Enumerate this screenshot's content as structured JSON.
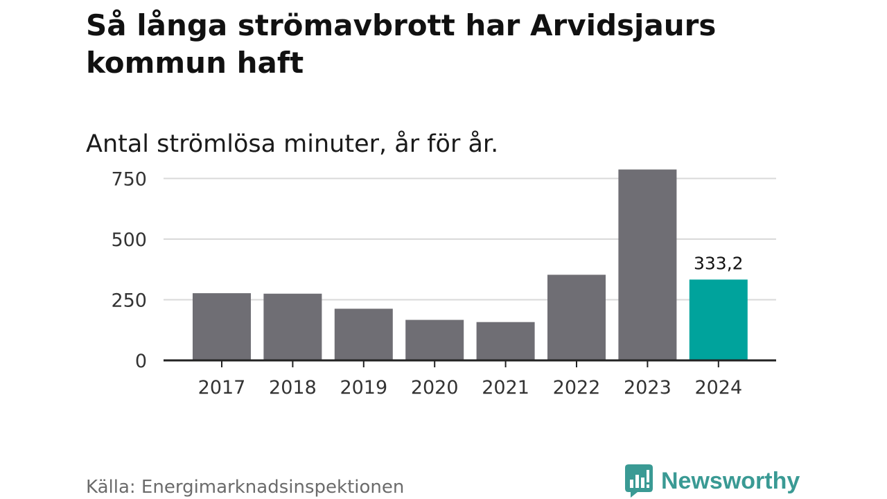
{
  "title": "Så långa strömavbrott har Arvidsjaurs kommun haft",
  "subtitle": "Antal strömlösa minuter, år för år.",
  "source": "Källa: Energimarknadsinspektionen",
  "brand": {
    "name": "Newsworthy",
    "icon": "newsworthy-logo-icon",
    "color": "#3a9a94"
  },
  "colors": {
    "bar": "#6f6e74",
    "highlight": "#00a39c",
    "grid": "#d9d9d9",
    "axis": "#222222"
  },
  "chart_data": {
    "type": "bar",
    "title": "Så långa strömavbrott har Arvidsjaurs kommun haft",
    "subtitle": "Antal strömlösa minuter, år för år.",
    "xlabel": "",
    "ylabel": "",
    "categories": [
      "2017",
      "2018",
      "2019",
      "2020",
      "2021",
      "2022",
      "2023",
      "2024"
    ],
    "values": [
      277,
      275,
      213,
      167,
      158,
      353,
      787,
      333.2
    ],
    "ylim": [
      0,
      800
    ],
    "yticks": [
      0,
      250,
      500,
      750
    ],
    "ytick_labels": [
      "0",
      "250",
      "500",
      "750"
    ],
    "grid": true,
    "highlight_index": 7,
    "data_labels": [
      {
        "index": 7,
        "text": "333,2"
      }
    ]
  }
}
